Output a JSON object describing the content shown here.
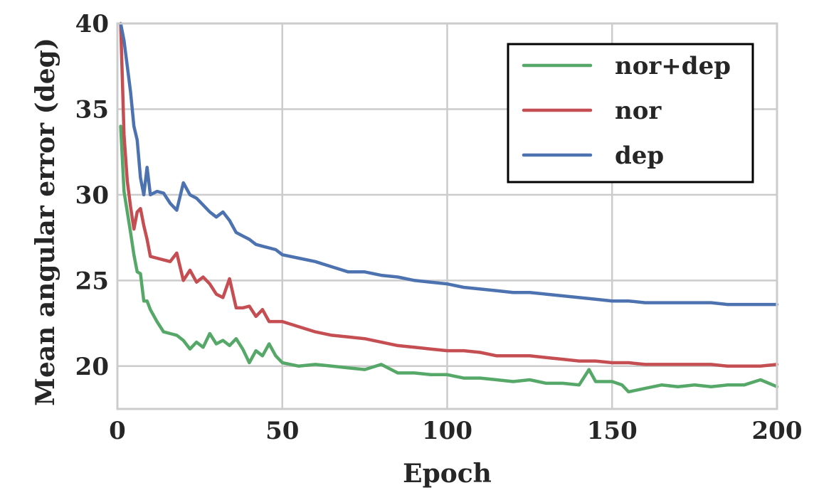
{
  "chart_data": {
    "type": "line",
    "xlabel": "Epoch",
    "ylabel": "Mean angular error (deg)",
    "xlim": [
      0,
      200
    ],
    "ylim": [
      17.5,
      40
    ],
    "xticks": [
      0,
      50,
      100,
      150,
      200
    ],
    "yticks": [
      20,
      25,
      30,
      35,
      40
    ],
    "grid": true,
    "legend_position": "top-right",
    "series": [
      {
        "name": "nor+dep",
        "color": "#55a868",
        "x": [
          1,
          2,
          3,
          4,
          5,
          6,
          7,
          8,
          9,
          10,
          12,
          14,
          16,
          18,
          20,
          22,
          24,
          26,
          28,
          30,
          32,
          34,
          36,
          38,
          40,
          42,
          44,
          46,
          48,
          50,
          55,
          60,
          65,
          70,
          75,
          80,
          85,
          90,
          95,
          100,
          105,
          110,
          115,
          120,
          125,
          130,
          135,
          140,
          143,
          145,
          150,
          153,
          155,
          160,
          165,
          170,
          175,
          180,
          185,
          190,
          195,
          200
        ],
        "values": [
          34,
          30.2,
          29,
          27.8,
          26.5,
          25.5,
          25.4,
          23.8,
          23.8,
          23.3,
          22.6,
          22.0,
          21.9,
          21.8,
          21.5,
          21.0,
          21.4,
          21.1,
          21.9,
          21.3,
          21.5,
          21.2,
          21.6,
          21.0,
          20.2,
          20.9,
          20.6,
          21.3,
          20.6,
          20.2,
          20.0,
          20.1,
          20.0,
          19.9,
          19.8,
          20.1,
          19.6,
          19.6,
          19.5,
          19.5,
          19.3,
          19.3,
          19.2,
          19.1,
          19.2,
          19.0,
          19.0,
          18.9,
          19.8,
          19.1,
          19.1,
          18.9,
          18.5,
          18.7,
          18.9,
          18.8,
          18.9,
          18.8,
          18.9,
          18.9,
          19.2,
          18.8
        ]
      },
      {
        "name": "nor",
        "color": "#c44e52",
        "x": [
          1,
          2,
          3,
          4,
          5,
          6,
          7,
          8,
          9,
          10,
          12,
          14,
          16,
          18,
          20,
          22,
          24,
          26,
          28,
          30,
          32,
          34,
          36,
          38,
          40,
          42,
          44,
          46,
          48,
          50,
          55,
          60,
          65,
          70,
          75,
          80,
          85,
          90,
          95,
          100,
          105,
          110,
          115,
          120,
          125,
          130,
          135,
          140,
          145,
          150,
          155,
          160,
          165,
          170,
          175,
          180,
          185,
          190,
          195,
          200
        ],
        "values": [
          40,
          33.5,
          30.8,
          29.3,
          28.0,
          29.0,
          29.2,
          28.2,
          27.4,
          26.4,
          26.3,
          26.2,
          26.1,
          26.6,
          25.0,
          25.6,
          24.9,
          25.2,
          24.8,
          24.2,
          24.0,
          25.1,
          23.4,
          23.4,
          23.5,
          22.9,
          23.3,
          22.6,
          22.6,
          22.6,
          22.3,
          22.0,
          21.8,
          21.7,
          21.6,
          21.4,
          21.2,
          21.1,
          21.0,
          20.9,
          20.9,
          20.8,
          20.6,
          20.6,
          20.6,
          20.5,
          20.4,
          20.3,
          20.3,
          20.2,
          20.2,
          20.1,
          20.1,
          20.1,
          20.1,
          20.1,
          20.0,
          20.0,
          20.0,
          20.1
        ]
      },
      {
        "name": "dep",
        "color": "#4c72b0",
        "x": [
          1,
          2,
          3,
          4,
          5,
          6,
          7,
          8,
          9,
          10,
          12,
          14,
          16,
          18,
          20,
          22,
          24,
          26,
          28,
          30,
          32,
          34,
          36,
          38,
          40,
          42,
          44,
          46,
          48,
          50,
          55,
          60,
          65,
          70,
          75,
          80,
          85,
          90,
          95,
          100,
          105,
          110,
          115,
          120,
          125,
          130,
          135,
          140,
          145,
          150,
          155,
          160,
          165,
          170,
          175,
          180,
          185,
          190,
          195,
          200
        ],
        "values": [
          40,
          39,
          37.5,
          36,
          34,
          33.2,
          31,
          30,
          31.6,
          30,
          30.2,
          30.1,
          29.5,
          29.1,
          30.7,
          30.0,
          29.8,
          29.4,
          29.0,
          28.7,
          29.0,
          28.5,
          27.8,
          27.6,
          27.4,
          27.1,
          27.0,
          26.9,
          26.8,
          26.5,
          26.3,
          26.1,
          25.8,
          25.5,
          25.5,
          25.3,
          25.2,
          25.0,
          24.9,
          24.8,
          24.6,
          24.5,
          24.4,
          24.3,
          24.3,
          24.2,
          24.1,
          24.0,
          23.9,
          23.8,
          23.8,
          23.7,
          23.7,
          23.7,
          23.7,
          23.7,
          23.6,
          23.6,
          23.6,
          23.6
        ]
      }
    ]
  }
}
